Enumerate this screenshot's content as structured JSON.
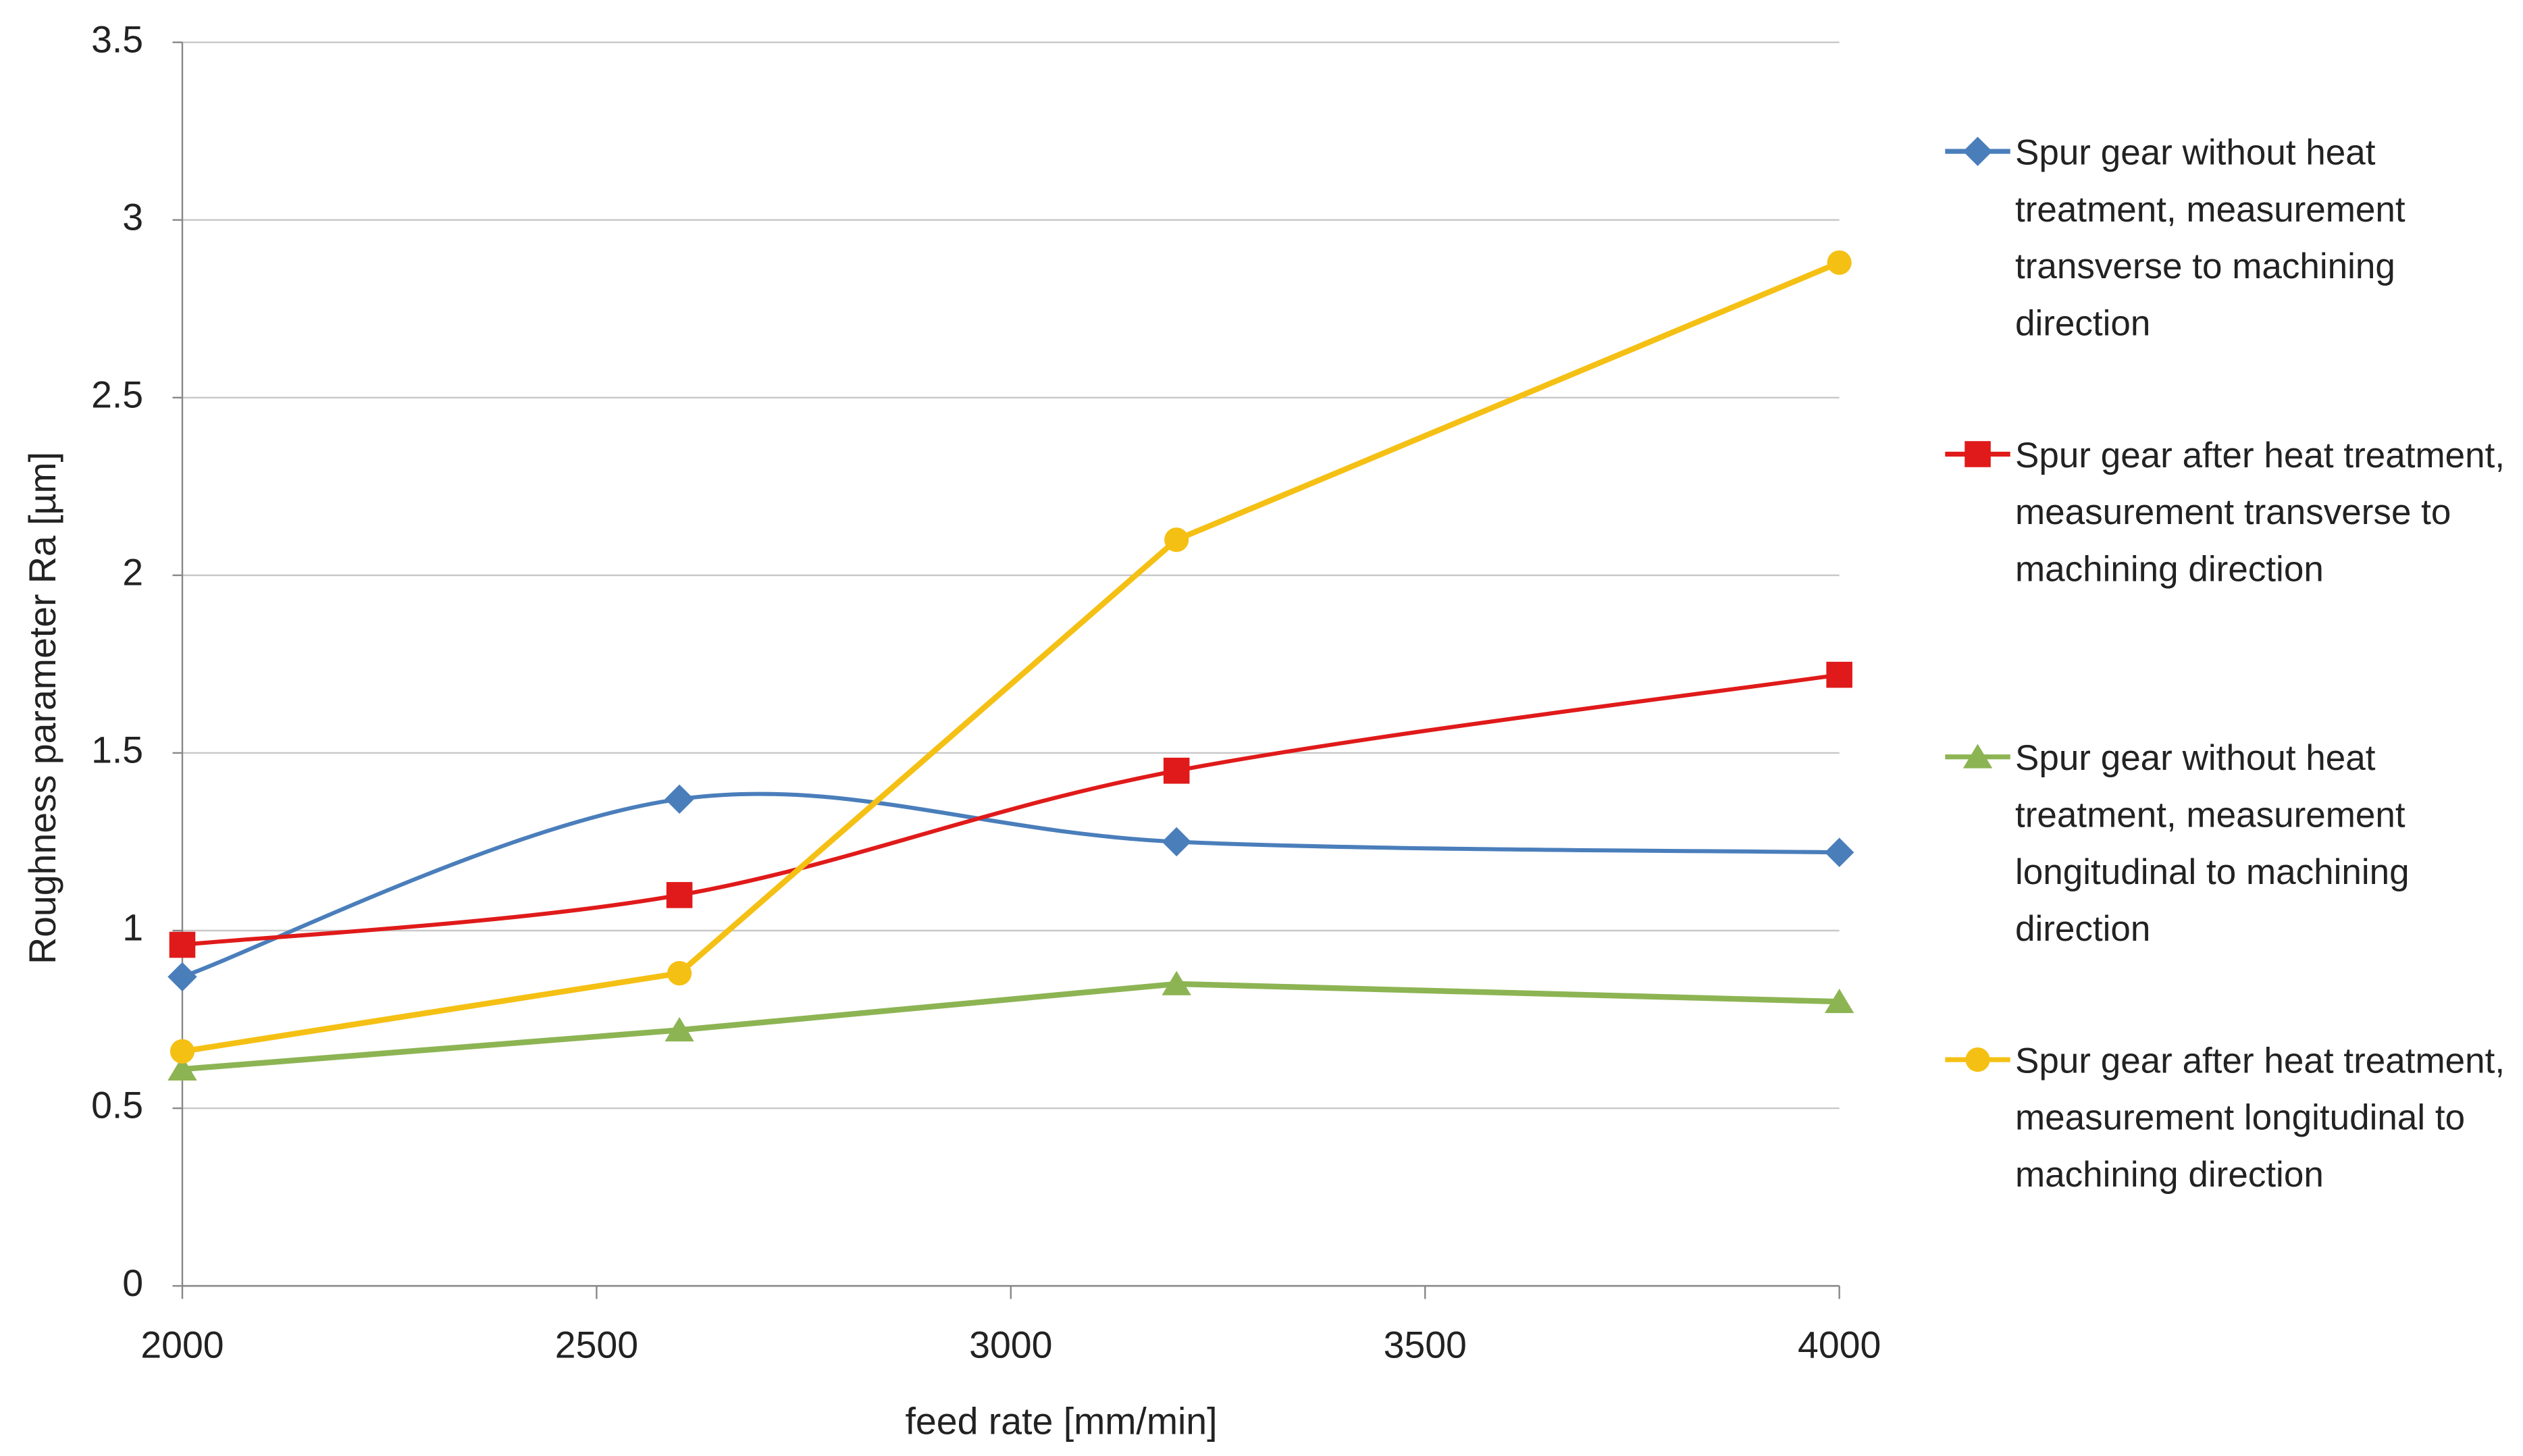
{
  "chart_data": {
    "type": "line",
    "x_label": "feed rate [mm/min]",
    "y_label": "Roughness parameter Ra [µm]",
    "x": [
      2000,
      2600,
      3200,
      4000
    ],
    "xlim": [
      2000,
      4000
    ],
    "xticks": [
      2000,
      2500,
      3000,
      3500,
      4000
    ],
    "ylim": [
      0,
      3.5
    ],
    "yticks": [
      0,
      0.5,
      1,
      1.5,
      2,
      2.5,
      3,
      3.5
    ],
    "grid": true,
    "legend": "right",
    "series": [
      {
        "name": "Spur gear without heat treatment, measurement transverse to machining direction",
        "color": "#4a7ebb",
        "marker": "diamond",
        "smooth": true,
        "values": [
          0.87,
          1.37,
          1.25,
          1.22
        ]
      },
      {
        "name": "Spur gear after heat treatment, measurement transverse to machining direction",
        "color": "#e01a1a",
        "marker": "square",
        "smooth": true,
        "values": [
          0.96,
          1.1,
          1.45,
          1.72
        ]
      },
      {
        "name": "Spur gear without heat treatment, measurement longitudinal to machining direction",
        "color": "#8db453",
        "marker": "triangle",
        "smooth": false,
        "values": [
          0.61,
          0.72,
          0.85,
          0.8
        ]
      },
      {
        "name": "Spur gear after heat treatment, measurement longitudinal to machining direction",
        "color": "#f5c014",
        "marker": "circle",
        "smooth": false,
        "values": [
          0.66,
          0.88,
          2.1,
          2.88
        ]
      }
    ]
  }
}
